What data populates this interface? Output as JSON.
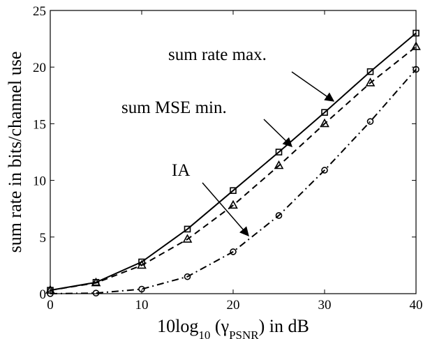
{
  "chart_data": {
    "type": "line",
    "x": [
      0,
      5,
      10,
      15,
      20,
      25,
      30,
      35,
      40
    ],
    "xlim": [
      0,
      40
    ],
    "ylim": [
      0,
      25
    ],
    "xticks": [
      0,
      10,
      20,
      30,
      40
    ],
    "yticks": [
      0,
      5,
      10,
      15,
      20,
      25
    ],
    "xlabel": {
      "prefix": "10log",
      "sub": "10",
      "mid": " (γ",
      "sub2": "PSNR",
      "suffix": ") in dB"
    },
    "ylabel": "sum rate in bits/channel use",
    "grid": false,
    "legend": "none",
    "series": [
      {
        "name": "sum rate max.",
        "style": "solid",
        "marker": "square",
        "color": "#000000",
        "values": [
          0.3,
          1.0,
          2.8,
          5.7,
          9.1,
          12.5,
          16.0,
          19.6,
          23.0
        ]
      },
      {
        "name": "sum MSE min.",
        "style": "dashed",
        "marker": "triangle",
        "color": "#000000",
        "values": [
          0.3,
          0.95,
          2.5,
          4.8,
          7.8,
          11.3,
          15.0,
          18.6,
          21.8
        ]
      },
      {
        "name": "IA",
        "style": "dashdot",
        "marker": "circle",
        "color": "#000000",
        "values": [
          0.0,
          0.05,
          0.4,
          1.5,
          3.7,
          6.9,
          10.9,
          15.2,
          19.8
        ]
      }
    ],
    "annotations": [
      {
        "text": "sum rate max.",
        "series": 0
      },
      {
        "text": "sum MSE min.",
        "series": 1
      },
      {
        "text": "IA",
        "series": 2
      }
    ]
  }
}
